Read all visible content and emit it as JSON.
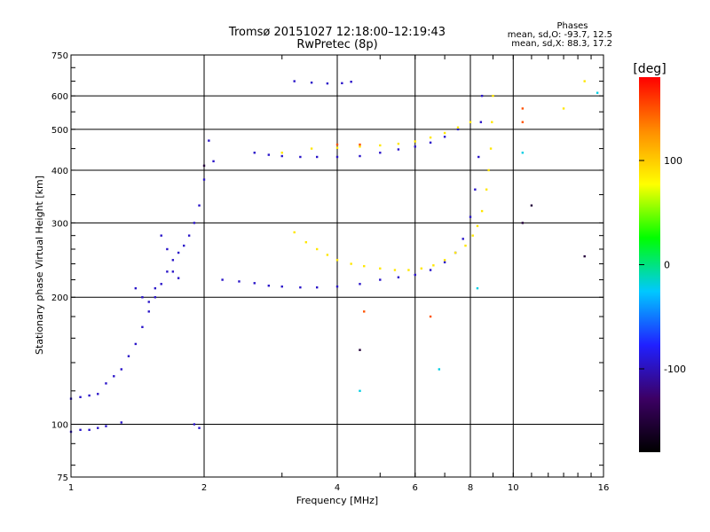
{
  "chart_data": {
    "type": "scatter",
    "title": "Tromsø 20151027 12:18:00–12:19:43",
    "subtitle": "RwPretec (8p)",
    "xlabel": "Frequency [MHz]",
    "ylabel": "Stationary phase Virtual Height [km]",
    "xscale": "log",
    "yscale": "log",
    "xlim": [
      1,
      16
    ],
    "ylim": [
      75,
      750
    ],
    "xticks": [
      1,
      2,
      4,
      6,
      8,
      10,
      16
    ],
    "yticks": [
      75,
      100,
      200,
      300,
      400,
      500,
      600,
      750
    ],
    "grid": true,
    "colorbar": {
      "label": "[deg]",
      "range": [
        -180,
        180
      ],
      "ticks": [
        -100,
        0,
        100
      ],
      "colors": [
        "#000000",
        "#3c0064",
        "#2020ff",
        "#00c8ff",
        "#00ff00",
        "#ffff00",
        "#ff8c00",
        "#ff0000"
      ]
    },
    "phase_stats": {
      "heading": "Phases",
      "line_o": "mean, sd,O: -93.7, 12.5",
      "line_x": "mean, sd,X:  88.3, 17.2"
    },
    "series": [
      {
        "phase_deg": -95,
        "points": [
          [
            1.0,
            115
          ],
          [
            1.05,
            116
          ],
          [
            1.1,
            117
          ],
          [
            1.15,
            118
          ],
          [
            1.2,
            125
          ],
          [
            1.25,
            130
          ],
          [
            1.3,
            135
          ],
          [
            1.35,
            145
          ],
          [
            1.4,
            155
          ],
          [
            1.45,
            170
          ],
          [
            1.5,
            185
          ],
          [
            1.55,
            200
          ],
          [
            1.6,
            215
          ],
          [
            1.65,
            230
          ],
          [
            1.7,
            245
          ],
          [
            1.75,
            255
          ],
          [
            1.8,
            265
          ],
          [
            1.85,
            280
          ],
          [
            1.9,
            300
          ],
          [
            1.95,
            330
          ],
          [
            2.0,
            380
          ],
          [
            2.05,
            470
          ],
          [
            2.1,
            420
          ],
          [
            2.2,
            220
          ],
          [
            2.4,
            218
          ],
          [
            2.6,
            216
          ],
          [
            2.8,
            213
          ],
          [
            3.0,
            212
          ],
          [
            3.3,
            211
          ],
          [
            3.6,
            211
          ],
          [
            4.0,
            212
          ],
          [
            4.5,
            215
          ],
          [
            5.0,
            220
          ],
          [
            5.5,
            223
          ],
          [
            6.0,
            226
          ],
          [
            6.5,
            232
          ],
          [
            7.0,
            242
          ],
          [
            7.4,
            255
          ],
          [
            7.7,
            275
          ],
          [
            8.0,
            310
          ],
          [
            8.2,
            360
          ],
          [
            8.35,
            430
          ],
          [
            8.45,
            520
          ],
          [
            8.5,
            600
          ],
          [
            1.4,
            210
          ],
          [
            1.45,
            200
          ],
          [
            1.5,
            195
          ],
          [
            1.55,
            210
          ],
          [
            1.6,
            280
          ],
          [
            1.65,
            260
          ],
          [
            1.7,
            230
          ],
          [
            1.75,
            222
          ],
          [
            2.6,
            440
          ],
          [
            2.8,
            435
          ],
          [
            3.0,
            432
          ],
          [
            3.3,
            430
          ],
          [
            3.6,
            430
          ],
          [
            4.0,
            430
          ],
          [
            4.5,
            432
          ],
          [
            5.0,
            440
          ],
          [
            5.5,
            448
          ],
          [
            6.0,
            455
          ],
          [
            6.5,
            465
          ],
          [
            7.0,
            480
          ],
          [
            7.5,
            500
          ],
          [
            1.0,
            96
          ],
          [
            1.05,
            97
          ],
          [
            1.1,
            97
          ],
          [
            1.15,
            98
          ],
          [
            1.2,
            99
          ],
          [
            1.3,
            101
          ],
          [
            1.9,
            100
          ],
          [
            1.95,
            98
          ],
          [
            3.2,
            650
          ],
          [
            3.5,
            645
          ],
          [
            3.8,
            642
          ],
          [
            4.1,
            643
          ],
          [
            4.3,
            648
          ]
        ]
      },
      {
        "phase_deg": 88,
        "points": [
          [
            3.2,
            285
          ],
          [
            3.4,
            270
          ],
          [
            3.6,
            260
          ],
          [
            3.8,
            252
          ],
          [
            4.0,
            245
          ],
          [
            4.3,
            240
          ],
          [
            4.6,
            237
          ],
          [
            5.0,
            234
          ],
          [
            5.4,
            232
          ],
          [
            5.8,
            232
          ],
          [
            6.2,
            234
          ],
          [
            6.6,
            238
          ],
          [
            7.0,
            245
          ],
          [
            7.4,
            255
          ],
          [
            7.8,
            265
          ],
          [
            8.1,
            280
          ],
          [
            8.3,
            295
          ],
          [
            8.5,
            320
          ],
          [
            8.7,
            360
          ],
          [
            8.8,
            400
          ],
          [
            8.9,
            450
          ],
          [
            8.95,
            520
          ],
          [
            9.0,
            600
          ],
          [
            3.0,
            440
          ],
          [
            3.5,
            450
          ],
          [
            4.0,
            452
          ],
          [
            4.5,
            455
          ],
          [
            5.0,
            458
          ],
          [
            5.5,
            462
          ],
          [
            6.0,
            468
          ],
          [
            6.5,
            478
          ],
          [
            7.0,
            490
          ],
          [
            7.5,
            505
          ],
          [
            8.0,
            520
          ],
          [
            13.0,
            560
          ],
          [
            14.5,
            650
          ]
        ]
      },
      {
        "phase_deg": 150,
        "points": [
          [
            10.5,
            520
          ],
          [
            10.5,
            560
          ],
          [
            4.6,
            185
          ],
          [
            6.5,
            180
          ],
          [
            4.0,
            460
          ],
          [
            4.5,
            460
          ]
        ]
      },
      {
        "phase_deg": -20,
        "points": [
          [
            10.5,
            440
          ],
          [
            6.8,
            135
          ],
          [
            4.5,
            120
          ],
          [
            8.3,
            210
          ],
          [
            15.5,
            610
          ]
        ]
      },
      {
        "phase_deg": -150,
        "points": [
          [
            10.5,
            300
          ],
          [
            14.5,
            250
          ],
          [
            4.5,
            150
          ],
          [
            11.0,
            330
          ],
          [
            2.0,
            410
          ]
        ]
      }
    ]
  }
}
